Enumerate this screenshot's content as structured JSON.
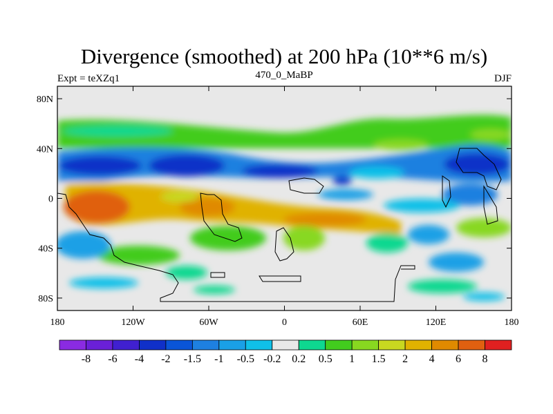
{
  "chart_data": {
    "type": "heatmap",
    "title": "Divergence (smoothed) at 200 hPa (10**6 m/s)",
    "left_label": "Expt = teXZq1",
    "center_label": "470_0_MaBP",
    "right_label": "DJF",
    "x_ticks": [
      "180",
      "120W",
      "60W",
      "0",
      "60E",
      "120E",
      "180"
    ],
    "y_ticks": [
      "80N",
      "40N",
      "0",
      "40S",
      "80S"
    ],
    "xlim": [
      -180,
      180
    ],
    "ylim": [
      -90,
      90
    ],
    "colorbar_labels": [
      "-8",
      "-6",
      "-4",
      "-2",
      "-1.5",
      "-1",
      "-0.5",
      "-0.2",
      "0.2",
      "0.5",
      "1",
      "1.5",
      "2",
      "4",
      "6",
      "8"
    ],
    "colorbar_colors": [
      "#8a2be2",
      "#6a20d8",
      "#4020d0",
      "#1030c8",
      "#0a55d8",
      "#1e80e0",
      "#1aa0e6",
      "#10c0e8",
      "#e8e8e8",
      "#0ed890",
      "#42cc1e",
      "#88d820",
      "#c8d820",
      "#e0b200",
      "#e08a00",
      "#e06010",
      "#e02020"
    ]
  }
}
